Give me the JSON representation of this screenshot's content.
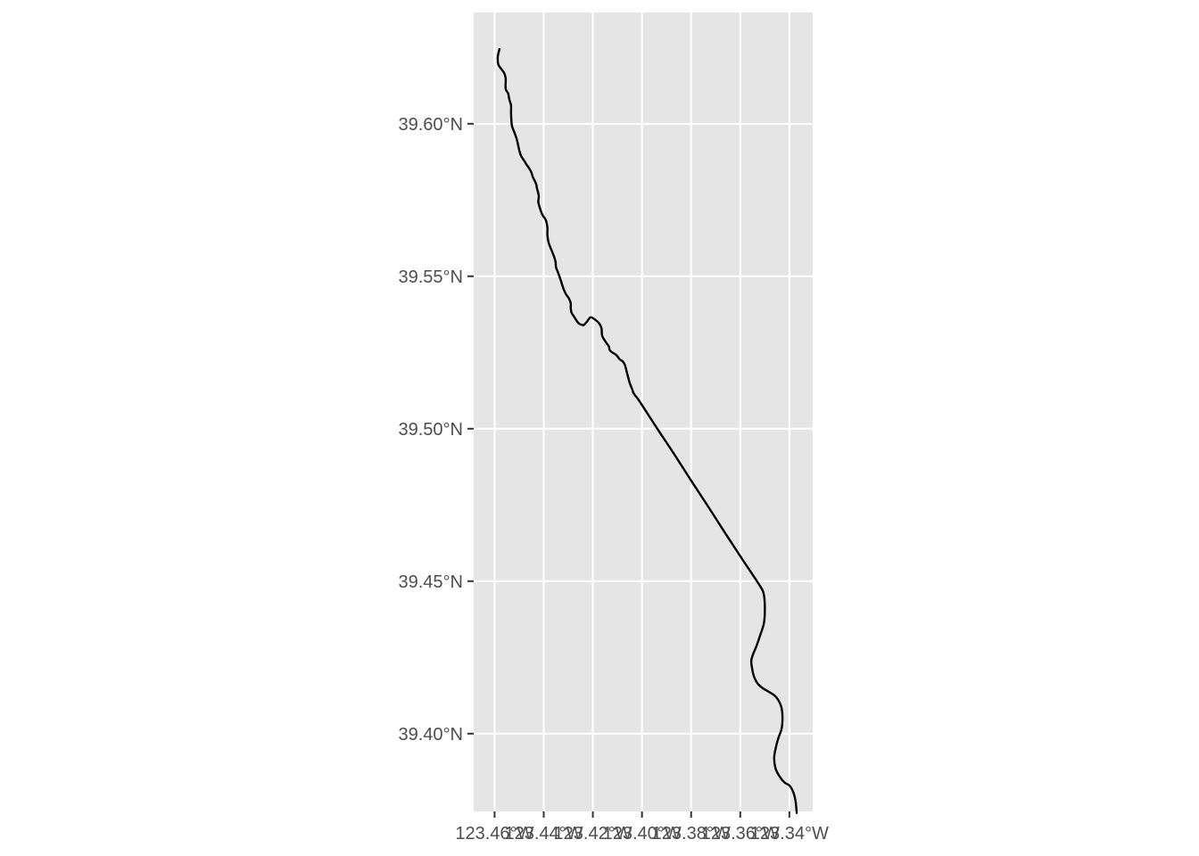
{
  "chart_data": {
    "type": "line",
    "title": "",
    "xlabel": "",
    "ylabel": "",
    "xlim": [
      -123.4685,
      -123.3305
    ],
    "ylim": [
      39.3745,
      39.6365
    ],
    "grid": true,
    "panel_background": "#E5E5E5",
    "grid_color": "#FFFFFF",
    "line_color": "#000000",
    "x_ticks": [
      {
        "value": -123.46,
        "label": "123.46°W"
      },
      {
        "value": -123.44,
        "label": "123.44°W"
      },
      {
        "value": -123.42,
        "label": "123.42°W"
      },
      {
        "value": -123.4,
        "label": "123.40°W"
      },
      {
        "value": -123.38,
        "label": "123.38°W"
      },
      {
        "value": -123.36,
        "label": "123.36°W"
      },
      {
        "value": -123.34,
        "label": "123.34°W"
      }
    ],
    "y_ticks": [
      {
        "value": 39.4,
        "label": "39.40°N"
      },
      {
        "value": 39.45,
        "label": "39.45°N"
      },
      {
        "value": 39.5,
        "label": "39.50°N"
      },
      {
        "value": 39.55,
        "label": "39.55°N"
      },
      {
        "value": 39.6,
        "label": "39.60°N"
      }
    ],
    "series": [
      {
        "x": [
          -123.458,
          -123.4587,
          -123.4585,
          -123.4575,
          -123.4562,
          -123.4555,
          -123.4555,
          -123.4545,
          -123.454,
          -123.4533,
          -123.4533,
          -123.453,
          -123.4522,
          -123.451,
          -123.4495,
          -123.4478,
          -123.447,
          -123.446,
          -123.445,
          -123.4445,
          -123.4435,
          -123.443,
          -123.4428,
          -123.4424,
          -123.442,
          -123.4422,
          -123.4415,
          -123.4405,
          -123.4392,
          -123.4385,
          -123.4385,
          -123.438,
          -123.4368,
          -123.4357,
          -123.4352,
          -123.435,
          -123.4343,
          -123.4332,
          -123.432,
          -123.431,
          -123.4298,
          -123.429,
          -123.429,
          -123.4287,
          -123.4276,
          -123.4266,
          -123.4255,
          -123.4242,
          -123.4237,
          -123.4225,
          -123.421,
          -123.4195,
          -123.4175,
          -123.4165,
          -123.4162,
          -123.4148,
          -123.4135,
          -123.413,
          -123.4105,
          -123.409,
          -123.408,
          -123.407,
          -123.406,
          -123.405,
          -123.404,
          -123.4033,
          -123.401,
          -123.394,
          -123.387,
          -123.38,
          -123.373,
          -123.366,
          -123.359,
          -123.352,
          -123.3505,
          -123.35,
          -123.3503,
          -123.352,
          -123.3535,
          -123.3548,
          -123.3555,
          -123.3553,
          -123.3545,
          -123.353,
          -123.351,
          -123.3485,
          -123.346,
          -123.3445,
          -123.3432,
          -123.3428,
          -123.3432,
          -123.3445,
          -123.3455,
          -123.3462,
          -123.3456,
          -123.344,
          -123.342,
          -123.34,
          -123.3385,
          -123.3375,
          -123.337
        ],
        "y": [
          39.6245,
          39.622,
          39.6195,
          39.6182,
          39.6168,
          39.615,
          39.6115,
          39.61,
          39.608,
          39.606,
          39.6035,
          39.5996,
          39.5977,
          39.595,
          39.59,
          39.5877,
          39.5866,
          39.5855,
          39.584,
          39.5827,
          39.581,
          39.58,
          39.579,
          39.5778,
          39.5762,
          39.5744,
          39.5722,
          39.5701,
          39.5685,
          39.566,
          39.5635,
          39.561,
          39.5585,
          39.5562,
          39.5548,
          39.553,
          39.5515,
          39.549,
          39.546,
          39.5442,
          39.5428,
          39.5412,
          39.5398,
          39.5381,
          39.5367,
          39.5354,
          39.5344,
          39.534,
          39.534,
          39.535,
          39.5365,
          39.536,
          39.5346,
          39.533,
          39.5305,
          39.5285,
          39.527,
          39.5256,
          39.5242,
          39.5227,
          39.5222,
          39.521,
          39.518,
          39.515,
          39.513,
          39.5115,
          39.509,
          39.5003,
          39.4918,
          39.483,
          39.4744,
          39.4656,
          39.457,
          39.4485,
          39.446,
          39.442,
          39.4365,
          39.432,
          39.4285,
          39.426,
          39.424,
          39.422,
          39.419,
          39.4165,
          39.415,
          39.4138,
          39.4125,
          39.411,
          39.4085,
          39.405,
          39.4015,
          39.3985,
          39.3955,
          39.392,
          39.3885,
          39.386,
          39.384,
          39.383,
          39.381,
          39.378,
          39.374
        ]
      }
    ]
  }
}
